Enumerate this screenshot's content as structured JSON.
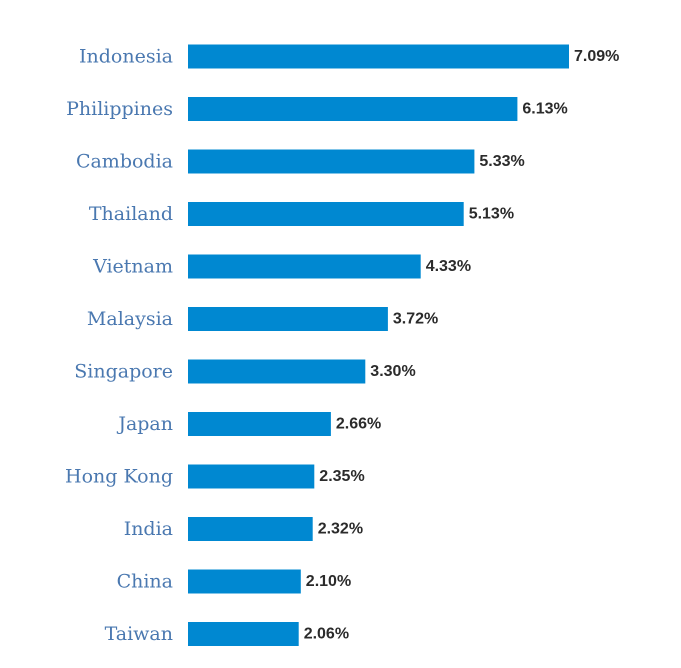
{
  "chart_data": {
    "type": "bar",
    "orientation": "horizontal",
    "title": "",
    "xlabel": "",
    "ylabel": "",
    "categories": [
      "Indonesia",
      "Philippines",
      "Cambodia",
      "Thailand",
      "Vietnam",
      "Malaysia",
      "Singapore",
      "Japan",
      "Hong Kong",
      "India",
      "China",
      "Taiwan"
    ],
    "values": [
      7.09,
      6.13,
      5.33,
      5.13,
      4.33,
      3.72,
      3.3,
      2.66,
      2.35,
      2.32,
      2.1,
      2.06
    ],
    "value_labels": [
      "7.09%",
      "6.13%",
      "5.33%",
      "5.13%",
      "4.33%",
      "3.72%",
      "3.30%",
      "2.66%",
      "2.35%",
      "2.32%",
      "2.10%",
      "2.06%"
    ],
    "xlim": [
      0,
      7.09
    ],
    "grid": false,
    "legend": "none",
    "bar_color": "#0088d1",
    "category_label_color": "#4a78b0",
    "value_label_color": "#2b2b2b"
  }
}
